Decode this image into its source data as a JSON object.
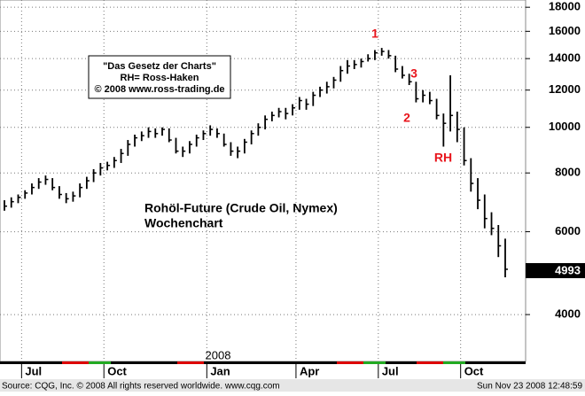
{
  "chart_data": {
    "type": "ohlc",
    "title": "Rohöl-Future (Crude Oil, Nymex)",
    "subtitle": "Wochenchart",
    "info_box": [
      "\"Das Gesetz der Charts\"",
      "RH= Ross-Haken",
      "© 2008 www.ross-trading.de"
    ],
    "annotations": [
      "1",
      "2",
      "3",
      "RH"
    ],
    "year_label": "2008",
    "footer_left": "Source: CQG, Inc. © 2008 All rights reserved worldwide. www.cqg.com",
    "footer_right": "Sun Nov 23 2008 12:48:59",
    "color": "#000000",
    "annotation_color": "#e8141b",
    "log_scale": true,
    "grid": true,
    "ylim": [
      3180,
      18650
    ],
    "yticks": [
      4000,
      6000,
      8000,
      10000,
      12000,
      14000,
      16000,
      18000
    ],
    "categories": [
      null,
      null,
      null,
      "Jul",
      null,
      null,
      null,
      null,
      null,
      null,
      null,
      null,
      null,
      null,
      null,
      "Oct",
      null,
      null,
      null,
      null,
      null,
      null,
      null,
      null,
      null,
      null,
      null,
      null,
      null,
      null,
      "Jan",
      null,
      null,
      null,
      null,
      null,
      null,
      null,
      null,
      null,
      null,
      null,
      null,
      "Apr",
      null,
      null,
      null,
      null,
      null,
      null,
      null,
      null,
      null,
      null,
      null,
      "Jul",
      null,
      null,
      null,
      null,
      null,
      null,
      null,
      null,
      null,
      null,
      null,
      "Oct",
      null,
      null,
      null,
      null,
      null,
      null
    ],
    "high": [
      7000,
      7100,
      7200,
      7350,
      7600,
      7800,
      7900,
      7800,
      7500,
      7250,
      7300,
      7600,
      7850,
      8150,
      8400,
      8450,
      8650,
      9000,
      9400,
      9650,
      9800,
      10000,
      9950,
      10000,
      9950,
      9500,
      9100,
      9350,
      9650,
      9850,
      10100,
      9950,
      9700,
      9300,
      9100,
      9450,
      9850,
      10200,
      10600,
      10800,
      11000,
      11000,
      11200,
      11600,
      11500,
      11900,
      12200,
      12500,
      12800,
      13500,
      13900,
      13900,
      14000,
      14300,
      14600,
      14750,
      14600,
      14200,
      13500,
      13000,
      12500,
      12000,
      11900,
      11500,
      10700,
      12900,
      10800,
      10000,
      8600,
      7800,
      7200,
      6600,
      6200,
      5800
    ],
    "low": [
      6650,
      6750,
      6900,
      7050,
      7200,
      7400,
      7550,
      7350,
      7050,
      6900,
      6950,
      7100,
      7400,
      7650,
      7900,
      8100,
      8200,
      8400,
      8700,
      9100,
      9350,
      9500,
      9500,
      9600,
      9300,
      8800,
      8650,
      8800,
      9100,
      9400,
      9600,
      9500,
      9100,
      8700,
      8600,
      8800,
      9200,
      9600,
      9900,
      10300,
      10500,
      10400,
      10600,
      10900,
      10900,
      11100,
      11600,
      11800,
      12100,
      12500,
      13000,
      13300,
      13400,
      13800,
      13900,
      14200,
      14000,
      13100,
      12700,
      12300,
      11300,
      11300,
      11200,
      10400,
      9100,
      9800,
      9300,
      8300,
      7300,
      6700,
      6100,
      5900,
      5300,
      4800
    ],
    "close": [
      6800,
      6950,
      7100,
      7250,
      7450,
      7650,
      7750,
      7450,
      7200,
      7050,
      7150,
      7450,
      7700,
      8000,
      8200,
      8300,
      8500,
      8800,
      9200,
      9500,
      9600,
      9800,
      9700,
      9900,
      9400,
      8900,
      8900,
      9200,
      9500,
      9700,
      9900,
      9700,
      9200,
      8900,
      8900,
      9300,
      9700,
      10000,
      10400,
      10600,
      10800,
      10700,
      11000,
      11400,
      11200,
      11700,
      12000,
      12200,
      12600,
      13200,
      13500,
      13600,
      13800,
      14000,
      14400,
      14500,
      14200,
      13300,
      12900,
      12500,
      11500,
      11700,
      11400,
      10600,
      10200,
      10600,
      9900,
      8500,
      7600,
      7000,
      6400,
      6100,
      5600,
      4993
    ]
  }
}
